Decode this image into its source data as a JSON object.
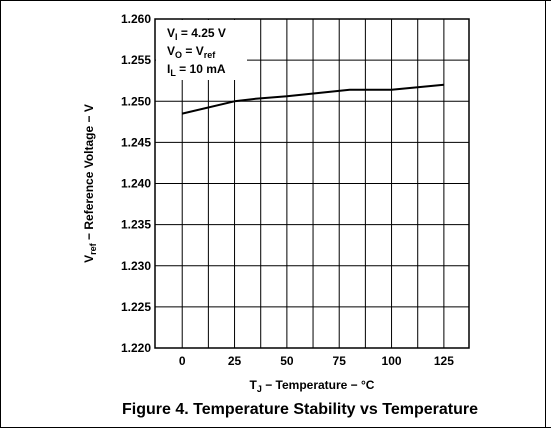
{
  "caption": "Figure 4. Temperature Stability vs Temperature",
  "chart_data": {
    "type": "line",
    "x": [
      0,
      25,
      35,
      50,
      65,
      80,
      100,
      125
    ],
    "series": [
      {
        "values": [
          1.2485,
          1.25,
          1.2503,
          1.2506,
          1.251,
          1.2514,
          1.2514,
          1.252
        ],
        "color": "#000000"
      }
    ],
    "xlim": [
      -13,
      137
    ],
    "ylim": [
      1.22,
      1.26
    ],
    "xticks": [
      "0",
      "25",
      "50",
      "75",
      "100",
      "125"
    ],
    "xtick_values": [
      0,
      25,
      50,
      75,
      100,
      125
    ],
    "yticks": [
      "1.220",
      "1.225",
      "1.230",
      "1.235",
      "1.240",
      "1.245",
      "1.250",
      "1.255",
      "1.260"
    ],
    "ytick_values": [
      1.22,
      1.225,
      1.23,
      1.235,
      1.24,
      1.245,
      1.25,
      1.255,
      1.26
    ],
    "grid": true,
    "xlabel": {
      "main": "T",
      "sub": "J",
      "rest": " − Temperature − °C"
    },
    "ylabel": {
      "main": "V",
      "sub": "ref",
      "rest": " − Reference Voltage − V"
    },
    "conditions": [
      {
        "main": "V",
        "sub": "I",
        "rest": " = 4.25 V"
      },
      {
        "main": "V",
        "sub": "O",
        "rest": " = V",
        "sub2": "ref"
      },
      {
        "main": "I",
        "sub": "L",
        "rest": " = 10 mA"
      }
    ]
  }
}
